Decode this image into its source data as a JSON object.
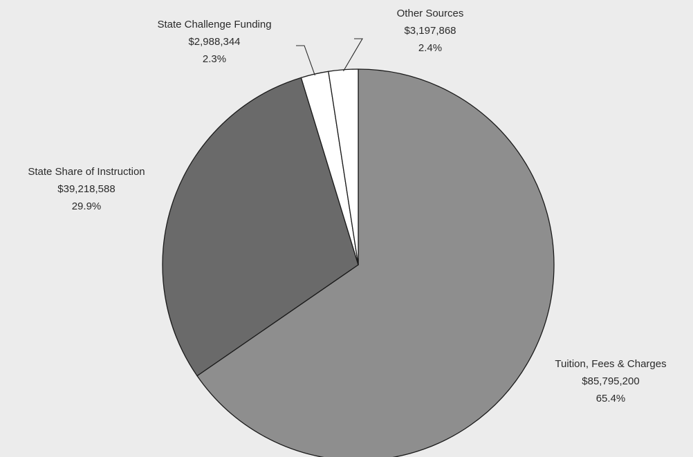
{
  "chart_data": {
    "type": "pie",
    "title": "",
    "slices": [
      {
        "name": "Tuition, Fees & Charges",
        "value": 85795200,
        "value_label": "$85,795,200",
        "percent": 65.4,
        "percent_label": "65.4%",
        "color": "#8e8e8e"
      },
      {
        "name": "State Share of Instruction",
        "value": 39218588,
        "value_label": "$39,218,588",
        "percent": 29.9,
        "percent_label": "29.9%",
        "color": "#6a6a6a"
      },
      {
        "name": "State Challenge Funding",
        "value": 2988344,
        "value_label": "$2,988,344",
        "percent": 2.3,
        "percent_label": "2.3%",
        "color": "#ffffff"
      },
      {
        "name": "Other Sources",
        "value": 3197868,
        "value_label": "$3,197,868",
        "percent": 2.4,
        "percent_label": "2.4%",
        "color": "#ffffff"
      }
    ],
    "start_at": "12 o'clock",
    "direction": "clockwise",
    "legend": "none",
    "edge_color": "#1a1a1a"
  }
}
